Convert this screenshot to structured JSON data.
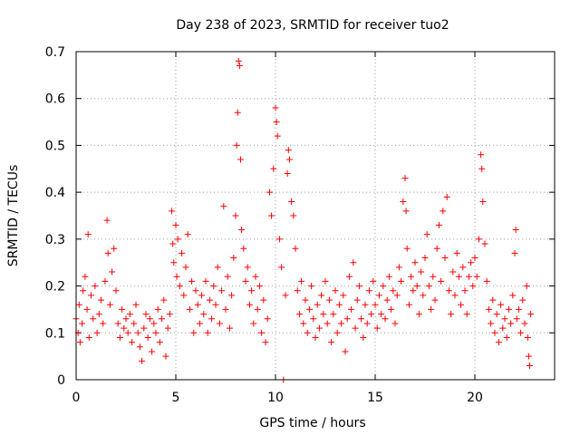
{
  "chart_data": {
    "type": "scatter",
    "title": "Day 238 of 2023, SRMTID for receiver tuo2",
    "xlabel": "GPS time / hours",
    "ylabel": "SRMTID / TECUs",
    "xlim": [
      0,
      24
    ],
    "ylim": [
      0,
      0.7
    ],
    "x_ticks": [
      0,
      5,
      10,
      15,
      20
    ],
    "x_tick_labels": [
      "0",
      "5",
      "10",
      "15",
      "20"
    ],
    "y_ticks": [
      0,
      0.1,
      0.2,
      0.3,
      0.4,
      0.5,
      0.6,
      0.7
    ],
    "y_tick_labels": [
      "0",
      "0.1",
      "0.2",
      "0.3",
      "0.4",
      "0.5",
      "0.6",
      "0.7"
    ],
    "grid": true,
    "marker": "+",
    "color": "#ff0000",
    "series": [
      {
        "name": "SRMTID",
        "points": [
          [
            0.0,
            0.13
          ],
          [
            0.1,
            0.1
          ],
          [
            0.15,
            0.16
          ],
          [
            0.2,
            0.08
          ],
          [
            0.3,
            0.12
          ],
          [
            0.35,
            0.19
          ],
          [
            0.45,
            0.22
          ],
          [
            0.55,
            0.15
          ],
          [
            0.6,
            0.31
          ],
          [
            0.65,
            0.09
          ],
          [
            0.75,
            0.18
          ],
          [
            0.85,
            0.13
          ],
          [
            0.95,
            0.2
          ],
          [
            1.05,
            0.1
          ],
          [
            1.15,
            0.14
          ],
          [
            1.25,
            0.17
          ],
          [
            1.35,
            0.12
          ],
          [
            1.45,
            0.21
          ],
          [
            1.55,
            0.34
          ],
          [
            1.6,
            0.27
          ],
          [
            1.7,
            0.16
          ],
          [
            1.8,
            0.23
          ],
          [
            1.9,
            0.28
          ],
          [
            2.0,
            0.19
          ],
          [
            2.1,
            0.12
          ],
          [
            2.2,
            0.09
          ],
          [
            2.3,
            0.15
          ],
          [
            2.4,
            0.11
          ],
          [
            2.5,
            0.13
          ],
          [
            2.6,
            0.1
          ],
          [
            2.7,
            0.14
          ],
          [
            2.8,
            0.08
          ],
          [
            2.9,
            0.12
          ],
          [
            3.0,
            0.16
          ],
          [
            3.1,
            0.1
          ],
          [
            3.2,
            0.07
          ],
          [
            3.3,
            0.04
          ],
          [
            3.4,
            0.11
          ],
          [
            3.5,
            0.14
          ],
          [
            3.6,
            0.09
          ],
          [
            3.7,
            0.13
          ],
          [
            3.8,
            0.06
          ],
          [
            3.9,
            0.12
          ],
          [
            4.0,
            0.1
          ],
          [
            4.1,
            0.15
          ],
          [
            4.2,
            0.08
          ],
          [
            4.3,
            0.13
          ],
          [
            4.4,
            0.17
          ],
          [
            4.5,
            0.05
          ],
          [
            4.6,
            0.11
          ],
          [
            4.7,
            0.14
          ],
          [
            4.8,
            0.36
          ],
          [
            4.85,
            0.29
          ],
          [
            4.9,
            0.25
          ],
          [
            5.0,
            0.33
          ],
          [
            5.05,
            0.22
          ],
          [
            5.1,
            0.3
          ],
          [
            5.2,
            0.2
          ],
          [
            5.3,
            0.27
          ],
          [
            5.4,
            0.18
          ],
          [
            5.5,
            0.24
          ],
          [
            5.6,
            0.31
          ],
          [
            5.7,
            0.15
          ],
          [
            5.8,
            0.21
          ],
          [
            5.9,
            0.1
          ],
          [
            6.0,
            0.19
          ],
          [
            6.1,
            0.16
          ],
          [
            6.2,
            0.12
          ],
          [
            6.3,
            0.18
          ],
          [
            6.4,
            0.14
          ],
          [
            6.5,
            0.21
          ],
          [
            6.6,
            0.1
          ],
          [
            6.7,
            0.17
          ],
          [
            6.8,
            0.13
          ],
          [
            6.9,
            0.2
          ],
          [
            7.0,
            0.16
          ],
          [
            7.1,
            0.24
          ],
          [
            7.2,
            0.12
          ],
          [
            7.3,
            0.19
          ],
          [
            7.4,
            0.37
          ],
          [
            7.5,
            0.15
          ],
          [
            7.6,
            0.22
          ],
          [
            7.7,
            0.11
          ],
          [
            7.8,
            0.18
          ],
          [
            7.9,
            0.26
          ],
          [
            8.0,
            0.35
          ],
          [
            8.05,
            0.5
          ],
          [
            8.1,
            0.57
          ],
          [
            8.15,
            0.68
          ],
          [
            8.2,
            0.67
          ],
          [
            8.25,
            0.47
          ],
          [
            8.3,
            0.32
          ],
          [
            8.4,
            0.28
          ],
          [
            8.5,
            0.21
          ],
          [
            8.6,
            0.24
          ],
          [
            8.7,
            0.16
          ],
          [
            8.8,
            0.19
          ],
          [
            8.9,
            0.12
          ],
          [
            9.0,
            0.22
          ],
          [
            9.1,
            0.15
          ],
          [
            9.2,
            0.2
          ],
          [
            9.3,
            0.1
          ],
          [
            9.4,
            0.17
          ],
          [
            9.5,
            0.08
          ],
          [
            9.6,
            0.13
          ],
          [
            9.7,
            0.4
          ],
          [
            9.8,
            0.35
          ],
          [
            9.9,
            0.45
          ],
          [
            10.0,
            0.58
          ],
          [
            10.05,
            0.55
          ],
          [
            10.1,
            0.52
          ],
          [
            10.2,
            0.3
          ],
          [
            10.3,
            0.24
          ],
          [
            10.4,
            0.0
          ],
          [
            10.5,
            0.18
          ],
          [
            10.6,
            0.44
          ],
          [
            10.65,
            0.49
          ],
          [
            10.7,
            0.47
          ],
          [
            10.8,
            0.38
          ],
          [
            10.9,
            0.35
          ],
          [
            11.0,
            0.28
          ],
          [
            11.1,
            0.19
          ],
          [
            11.2,
            0.14
          ],
          [
            11.3,
            0.21
          ],
          [
            11.4,
            0.12
          ],
          [
            11.5,
            0.17
          ],
          [
            11.6,
            0.1
          ],
          [
            11.7,
            0.15
          ],
          [
            11.8,
            0.2
          ],
          [
            11.9,
            0.13
          ],
          [
            12.0,
            0.09
          ],
          [
            12.1,
            0.16
          ],
          [
            12.2,
            0.11
          ],
          [
            12.3,
            0.18
          ],
          [
            12.4,
            0.14
          ],
          [
            12.5,
            0.21
          ],
          [
            12.6,
            0.12
          ],
          [
            12.7,
            0.17
          ],
          [
            12.8,
            0.08
          ],
          [
            12.9,
            0.14
          ],
          [
            13.0,
            0.19
          ],
          [
            13.1,
            0.1
          ],
          [
            13.2,
            0.16
          ],
          [
            13.3,
            0.12
          ],
          [
            13.4,
            0.18
          ],
          [
            13.5,
            0.06
          ],
          [
            13.6,
            0.13
          ],
          [
            13.7,
            0.22
          ],
          [
            13.8,
            0.15
          ],
          [
            13.9,
            0.25
          ],
          [
            14.0,
            0.11
          ],
          [
            14.1,
            0.17
          ],
          [
            14.2,
            0.2
          ],
          [
            14.3,
            0.13
          ],
          [
            14.4,
            0.09
          ],
          [
            14.5,
            0.16
          ],
          [
            14.6,
            0.12
          ],
          [
            14.7,
            0.19
          ],
          [
            14.8,
            0.14
          ],
          [
            14.9,
            0.21
          ],
          [
            15.0,
            0.16
          ],
          [
            15.1,
            0.11
          ],
          [
            15.2,
            0.18
          ],
          [
            15.3,
            0.14
          ],
          [
            15.4,
            0.2
          ],
          [
            15.5,
            0.13
          ],
          [
            15.6,
            0.17
          ],
          [
            15.7,
            0.22
          ],
          [
            15.8,
            0.15
          ],
          [
            15.9,
            0.19
          ],
          [
            16.0,
            0.12
          ],
          [
            16.1,
            0.18
          ],
          [
            16.2,
            0.24
          ],
          [
            16.3,
            0.21
          ],
          [
            16.4,
            0.38
          ],
          [
            16.5,
            0.43
          ],
          [
            16.55,
            0.36
          ],
          [
            16.6,
            0.28
          ],
          [
            16.7,
            0.16
          ],
          [
            16.8,
            0.22
          ],
          [
            16.9,
            0.19
          ],
          [
            17.0,
            0.25
          ],
          [
            17.1,
            0.2
          ],
          [
            17.2,
            0.14
          ],
          [
            17.3,
            0.23
          ],
          [
            17.4,
            0.18
          ],
          [
            17.5,
            0.26
          ],
          [
            17.6,
            0.31
          ],
          [
            17.7,
            0.2
          ],
          [
            17.8,
            0.15
          ],
          [
            17.9,
            0.22
          ],
          [
            18.0,
            0.17
          ],
          [
            18.1,
            0.28
          ],
          [
            18.2,
            0.33
          ],
          [
            18.3,
            0.21
          ],
          [
            18.4,
            0.36
          ],
          [
            18.5,
            0.26
          ],
          [
            18.6,
            0.39
          ],
          [
            18.7,
            0.19
          ],
          [
            18.8,
            0.14
          ],
          [
            18.9,
            0.23
          ],
          [
            19.0,
            0.18
          ],
          [
            19.1,
            0.27
          ],
          [
            19.2,
            0.22
          ],
          [
            19.3,
            0.16
          ],
          [
            19.4,
            0.24
          ],
          [
            19.5,
            0.19
          ],
          [
            19.6,
            0.14
          ],
          [
            19.7,
            0.22
          ],
          [
            19.8,
            0.25
          ],
          [
            19.9,
            0.2
          ],
          [
            20.0,
            0.26
          ],
          [
            20.1,
            0.22
          ],
          [
            20.2,
            0.3
          ],
          [
            20.3,
            0.48
          ],
          [
            20.35,
            0.45
          ],
          [
            20.4,
            0.38
          ],
          [
            20.5,
            0.29
          ],
          [
            20.6,
            0.21
          ],
          [
            20.7,
            0.15
          ],
          [
            20.8,
            0.12
          ],
          [
            20.9,
            0.17
          ],
          [
            21.0,
            0.1
          ],
          [
            21.1,
            0.14
          ],
          [
            21.2,
            0.08
          ],
          [
            21.3,
            0.16
          ],
          [
            21.4,
            0.11
          ],
          [
            21.5,
            0.13
          ],
          [
            21.6,
            0.09
          ],
          [
            21.7,
            0.15
          ],
          [
            21.8,
            0.12
          ],
          [
            21.9,
            0.18
          ],
          [
            22.0,
            0.27
          ],
          [
            22.05,
            0.32
          ],
          [
            22.1,
            0.13
          ],
          [
            22.2,
            0.15
          ],
          [
            22.3,
            0.1
          ],
          [
            22.4,
            0.17
          ],
          [
            22.5,
            0.12
          ],
          [
            22.6,
            0.2
          ],
          [
            22.65,
            0.09
          ],
          [
            22.7,
            0.05
          ],
          [
            22.75,
            0.03
          ],
          [
            22.8,
            0.14
          ]
        ]
      }
    ]
  }
}
